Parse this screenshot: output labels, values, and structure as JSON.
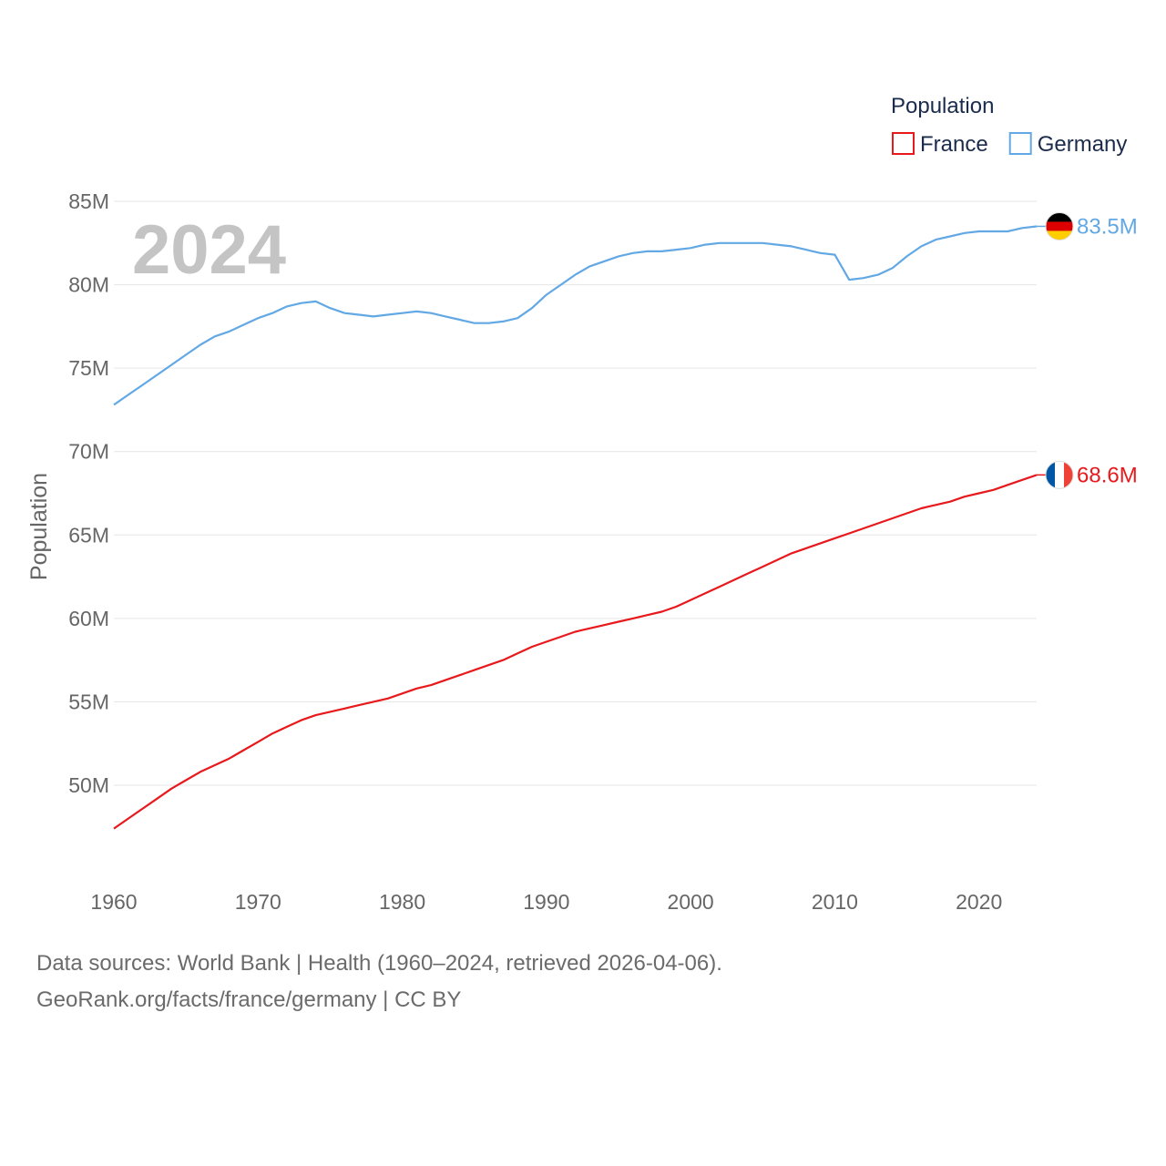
{
  "chart_data": {
    "type": "line",
    "title": "",
    "year_watermark": "2024",
    "xlabel": "",
    "ylabel": "Population",
    "legend_title": "Population",
    "legend_position": "top-right",
    "xlim": [
      1960,
      2024
    ],
    "ylim": [
      45,
      86
    ],
    "x_ticks": [
      1960,
      1970,
      1980,
      1990,
      2000,
      2010,
      2020
    ],
    "y_ticks": [
      {
        "value": 50,
        "label": "50M"
      },
      {
        "value": 55,
        "label": "55M"
      },
      {
        "value": 60,
        "label": "60M"
      },
      {
        "value": 65,
        "label": "65M"
      },
      {
        "value": 70,
        "label": "70M"
      },
      {
        "value": 75,
        "label": "75M"
      },
      {
        "value": 80,
        "label": "80M"
      },
      {
        "value": 85,
        "label": "85M"
      }
    ],
    "grid": true,
    "x": [
      1960,
      1961,
      1962,
      1963,
      1964,
      1965,
      1966,
      1967,
      1968,
      1969,
      1970,
      1971,
      1972,
      1973,
      1974,
      1975,
      1976,
      1977,
      1978,
      1979,
      1980,
      1981,
      1982,
      1983,
      1984,
      1985,
      1986,
      1987,
      1988,
      1989,
      1990,
      1991,
      1992,
      1993,
      1994,
      1995,
      1996,
      1997,
      1998,
      1999,
      2000,
      2001,
      2002,
      2003,
      2004,
      2005,
      2006,
      2007,
      2008,
      2009,
      2010,
      2011,
      2012,
      2013,
      2014,
      2015,
      2016,
      2017,
      2018,
      2019,
      2020,
      2021,
      2022,
      2023,
      2024
    ],
    "series": [
      {
        "name": "France",
        "color": "#e8191c",
        "end_label": "68.6M",
        "flag": "france-flag",
        "values": [
          47.4,
          48.0,
          48.6,
          49.2,
          49.8,
          50.3,
          50.8,
          51.2,
          51.6,
          52.1,
          52.6,
          53.1,
          53.5,
          53.9,
          54.2,
          54.4,
          54.6,
          54.8,
          55.0,
          55.2,
          55.5,
          55.8,
          56.0,
          56.3,
          56.6,
          56.9,
          57.2,
          57.5,
          57.9,
          58.3,
          58.6,
          58.9,
          59.2,
          59.4,
          59.6,
          59.8,
          60.0,
          60.2,
          60.4,
          60.7,
          61.1,
          61.5,
          61.9,
          62.3,
          62.7,
          63.1,
          63.5,
          63.9,
          64.2,
          64.5,
          64.8,
          65.1,
          65.4,
          65.7,
          66.0,
          66.3,
          66.6,
          66.8,
          67.0,
          67.3,
          67.5,
          67.7,
          68.0,
          68.3,
          68.6
        ]
      },
      {
        "name": "Germany",
        "color": "#62a8e5",
        "end_label": "83.5M",
        "flag": "germany-flag",
        "values": [
          72.8,
          73.4,
          74.0,
          74.6,
          75.2,
          75.8,
          76.4,
          76.9,
          77.2,
          77.6,
          78.0,
          78.3,
          78.7,
          78.9,
          79.0,
          78.6,
          78.3,
          78.2,
          78.1,
          78.2,
          78.3,
          78.4,
          78.3,
          78.1,
          77.9,
          77.7,
          77.7,
          77.8,
          78.0,
          78.6,
          79.4,
          80.0,
          80.6,
          81.1,
          81.4,
          81.7,
          81.9,
          82.0,
          82.0,
          82.1,
          82.2,
          82.4,
          82.5,
          82.5,
          82.5,
          82.5,
          82.4,
          82.3,
          82.1,
          81.9,
          81.8,
          80.3,
          80.4,
          80.6,
          81.0,
          81.7,
          82.3,
          82.7,
          82.9,
          83.1,
          83.2,
          83.2,
          83.2,
          83.4,
          83.5
        ]
      }
    ]
  },
  "footer": {
    "source_line": "Data sources: World Bank | Health (1960–2024, retrieved 2026-04-06).",
    "url_line": "GeoRank.org/facts/france/germany | CC BY"
  }
}
